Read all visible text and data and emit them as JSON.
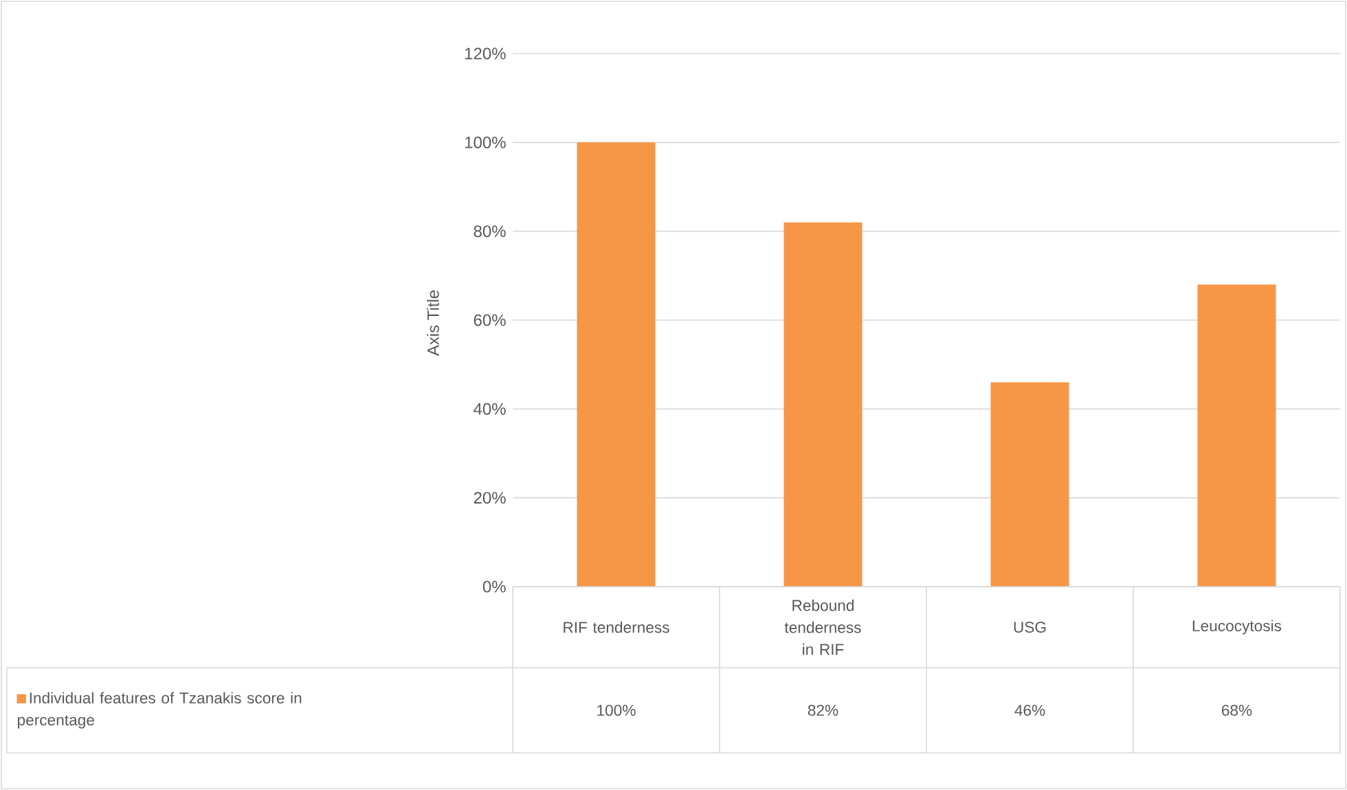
{
  "chart_data": {
    "type": "bar",
    "ylabel": "Axis Title",
    "categories": [
      "RIF tenderness",
      "Rebound tenderness in RIF",
      "USG",
      "Leucocytosis"
    ],
    "series": [
      {
        "name": "Individual features of Tzanakis score in percentage",
        "color": "#f79646",
        "values": [
          100,
          82,
          46,
          68
        ],
        "value_labels": [
          "100%",
          "82%",
          "46%",
          "68%"
        ]
      }
    ],
    "ylim": [
      0,
      120
    ],
    "yticks": [
      {
        "value": 0,
        "label": "0%"
      },
      {
        "value": 20,
        "label": "20%"
      },
      {
        "value": 40,
        "label": "40%"
      },
      {
        "value": 60,
        "label": "60%"
      },
      {
        "value": 80,
        "label": "80%"
      },
      {
        "value": 100,
        "label": "100%"
      },
      {
        "value": 120,
        "label": "120%"
      }
    ],
    "grid": "y",
    "legend": "bottom"
  }
}
